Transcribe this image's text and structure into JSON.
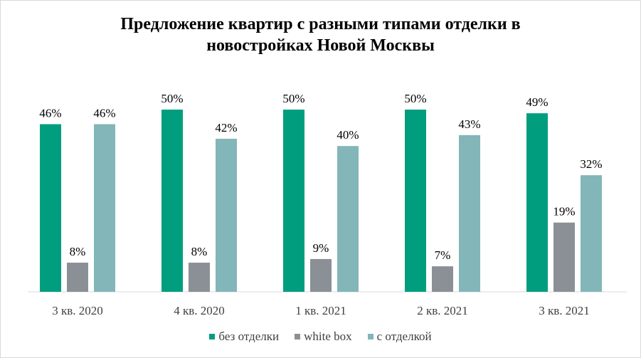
{
  "chart_data": {
    "type": "bar",
    "title_lines": [
      "Предложение квартир с разными типами отделки в",
      "новостройках Новой Москвы"
    ],
    "categories": [
      "3 кв. 2020",
      "4 кв. 2020",
      "1 кв. 2021",
      "2 кв. 2021",
      "3 кв. 2021"
    ],
    "series": [
      {
        "name": "без отделки",
        "color": "#009e7e",
        "values": [
          46,
          50,
          50,
          50,
          49
        ]
      },
      {
        "name": "white box",
        "color": "#8a9095",
        "values": [
          8,
          8,
          9,
          7,
          19
        ]
      },
      {
        "name": "с отделкой",
        "color": "#82b6b8",
        "values": [
          46,
          42,
          40,
          43,
          32
        ]
      }
    ],
    "value_suffix": "%",
    "grid": false,
    "legend_position": "bottom"
  }
}
